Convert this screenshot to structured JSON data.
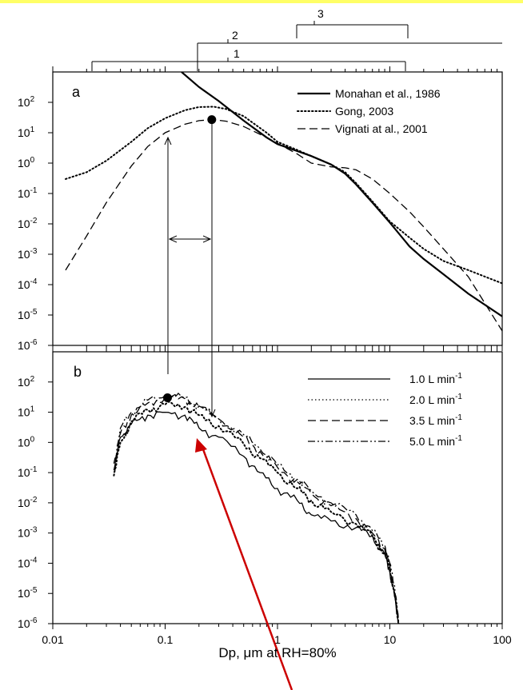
{
  "chart_data": [
    {
      "panel_label": "a",
      "type": "line",
      "x_scale": "log",
      "y_scale": "log",
      "xlim": [
        0.01,
        100
      ],
      "ylim": [
        1e-06,
        1000
      ],
      "y_tick_labels": [
        {
          "base": "10",
          "exp": "2"
        },
        {
          "base": "10",
          "exp": "1"
        },
        {
          "base": "10",
          "exp": "0"
        },
        {
          "base": "10",
          "exp": "-1"
        },
        {
          "base": "10",
          "exp": "-2"
        },
        {
          "base": "10",
          "exp": "-3"
        },
        {
          "base": "10",
          "exp": "-4"
        },
        {
          "base": "10",
          "exp": "-5"
        },
        {
          "base": "10",
          "exp": "-6"
        }
      ],
      "series": [
        {
          "name": "Monahan et al., 1986",
          "style": "solid",
          "x": [
            0.14,
            0.2,
            0.3,
            0.5,
            0.8,
            1.0,
            1.5,
            2.0,
            3.0,
            4.0,
            5.0,
            7.0,
            10.0,
            15.0,
            20.0,
            30.0,
            50.0,
            100.0
          ],
          "y": [
            1000,
            320,
            110,
            25,
            7,
            4.2,
            2.5,
            1.7,
            0.9,
            0.45,
            0.2,
            0.05,
            0.011,
            0.0018,
            0.0007,
            0.00022,
            5e-05,
            9e-06
          ]
        },
        {
          "name": "Gong, 2003",
          "style": "dotted",
          "x": [
            0.013,
            0.02,
            0.03,
            0.05,
            0.07,
            0.1,
            0.15,
            0.2,
            0.27,
            0.35,
            0.5,
            0.8,
            1.0,
            1.5,
            2.0,
            3.0,
            4.0,
            5.0,
            7.0,
            10.0,
            15.0,
            20.0,
            30.0,
            50.0,
            100.0
          ],
          "y": [
            0.3,
            0.5,
            1.2,
            5,
            14,
            30,
            55,
            70,
            72,
            60,
            35,
            10,
            5,
            2.7,
            1.7,
            0.9,
            0.5,
            0.22,
            0.055,
            0.012,
            0.0035,
            0.0015,
            0.0006,
            0.0003,
            0.00011
          ]
        },
        {
          "name": "Vignati at al., 2001",
          "style": "dashed",
          "x": [
            0.013,
            0.02,
            0.03,
            0.05,
            0.07,
            0.1,
            0.15,
            0.2,
            0.27,
            0.35,
            0.5,
            0.8,
            1.0,
            1.5,
            2.0,
            3.0,
            4.0,
            5.0,
            7.0,
            10.0,
            15.0,
            20.0,
            30.0,
            50.0,
            100.0
          ],
          "y": [
            0.0003,
            0.004,
            0.05,
            0.8,
            3.5,
            10,
            19,
            25,
            27,
            24,
            16,
            7,
            4.5,
            2.0,
            1.0,
            0.75,
            0.7,
            0.6,
            0.3,
            0.1,
            0.025,
            0.008,
            0.0015,
            0.00018,
            3e-06
          ]
        }
      ],
      "highlight_point": {
        "x": 0.26,
        "y": 27
      }
    },
    {
      "panel_label": "b",
      "type": "line",
      "x_scale": "log",
      "y_scale": "log",
      "xlim": [
        0.01,
        100
      ],
      "ylim": [
        1e-06,
        1000
      ],
      "x_tick_labels": [
        "0.01",
        "0.1",
        "1",
        "10",
        "100"
      ],
      "xlabel_prefix": "Dp, ",
      "xlabel_mu": "μ",
      "xlabel_suffix": "m at RH=80%",
      "y_tick_labels": [
        {
          "base": "10",
          "exp": "2"
        },
        {
          "base": "10",
          "exp": "1"
        },
        {
          "base": "10",
          "exp": "0"
        },
        {
          "base": "10",
          "exp": "-1"
        },
        {
          "base": "10",
          "exp": "-2"
        },
        {
          "base": "10",
          "exp": "-3"
        },
        {
          "base": "10",
          "exp": "-4"
        },
        {
          "base": "10",
          "exp": "-5"
        },
        {
          "base": "10",
          "exp": "-6"
        }
      ],
      "legend_unit_base": "L min",
      "legend_unit_exp": "-1",
      "series": [
        {
          "name": "1.0",
          "style": "solid",
          "x": [
            0.035,
            0.04,
            0.05,
            0.07,
            0.1,
            0.15,
            0.2,
            0.3,
            0.5,
            0.7,
            1.0,
            1.5,
            2.0,
            3.0,
            5.0,
            7.0,
            9.0,
            10.0,
            11.0,
            12.0
          ],
          "y": [
            0.12,
            1.5,
            4,
            8,
            10,
            8,
            3,
            1.5,
            0.35,
            0.1,
            0.03,
            0.012,
            0.004,
            0.0025,
            0.0015,
            0.0008,
            0.0002,
            5e-05,
            8e-06,
            1e-06
          ]
        },
        {
          "name": "2.0",
          "style": "dotted",
          "x": [
            0.035,
            0.04,
            0.05,
            0.07,
            0.1,
            0.15,
            0.2,
            0.3,
            0.5,
            0.7,
            1.0,
            1.5,
            2.0,
            3.0,
            5.0,
            7.0,
            9.0,
            10.0,
            11.0,
            12.0
          ],
          "y": [
            0.08,
            1.0,
            5,
            12,
            18,
            15,
            8,
            3.5,
            0.9,
            0.3,
            0.1,
            0.03,
            0.012,
            0.005,
            0.002,
            0.0008,
            0.0002,
            6e-05,
            1e-05,
            1e-06
          ]
        },
        {
          "name": "3.5",
          "style": "dashed",
          "x": [
            0.035,
            0.04,
            0.05,
            0.07,
            0.1,
            0.15,
            0.2,
            0.3,
            0.5,
            0.7,
            1.0,
            1.5,
            2.0,
            3.0,
            5.0,
            7.0,
            9.0,
            10.0,
            11.0,
            12.0
          ],
          "y": [
            0.1,
            2,
            8,
            20,
            30,
            28,
            15,
            6,
            1.5,
            0.5,
            0.15,
            0.05,
            0.02,
            0.008,
            0.003,
            0.001,
            0.0003,
            8e-05,
            1e-05,
            1e-06
          ]
        },
        {
          "name": "5.0",
          "style": "dashdotdot",
          "x": [
            0.035,
            0.04,
            0.05,
            0.07,
            0.1,
            0.15,
            0.2,
            0.3,
            0.5,
            0.7,
            1.0,
            1.5,
            2.0,
            3.0,
            5.0,
            7.0,
            9.0,
            10.0,
            11.0,
            12.0
          ],
          "y": [
            0.2,
            3,
            10,
            25,
            35,
            30,
            16,
            6,
            1.8,
            0.6,
            0.18,
            0.06,
            0.025,
            0.01,
            0.004,
            0.0012,
            0.0004,
            0.0001,
            2e-05,
            1e-06
          ]
        }
      ],
      "highlight_point": {
        "x": 0.105,
        "y": 30
      }
    }
  ],
  "size_ranges": [
    {
      "label": "1",
      "from": 0.021,
      "to": 13
    },
    {
      "label": "2",
      "from": 0.19,
      "to": 100
    },
    {
      "label": "3",
      "from": 1.5,
      "to": 14
    }
  ]
}
